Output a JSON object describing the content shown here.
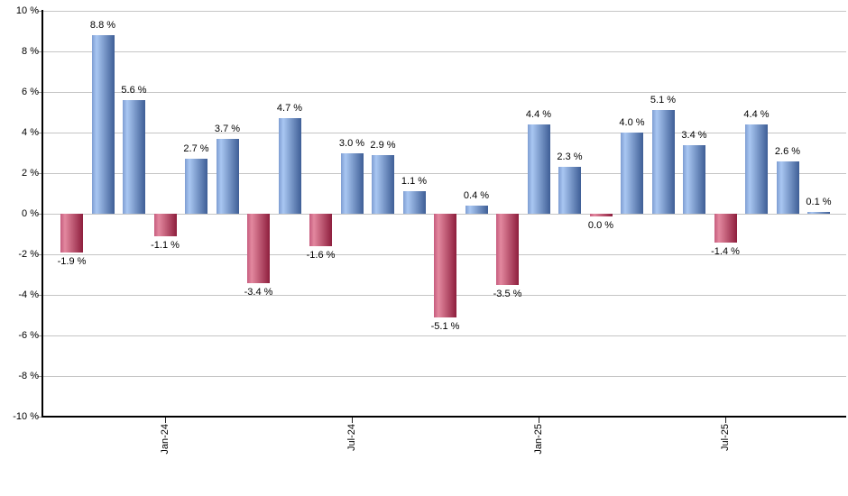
{
  "chart_data": {
    "type": "bar",
    "title": "",
    "xlabel": "",
    "ylabel": "",
    "ylim": [
      -10,
      10
    ],
    "y_step": 2,
    "grid": "horizontal",
    "legend": "none",
    "values": [
      -1.9,
      8.8,
      5.6,
      -1.1,
      2.7,
      3.7,
      -3.4,
      4.7,
      -1.6,
      3.0,
      2.9,
      1.1,
      -5.1,
      0.4,
      -3.5,
      4.4,
      2.3,
      0.0,
      4.0,
      5.1,
      3.4,
      -1.4,
      4.4,
      2.6,
      0.1
    ],
    "bar_display_labels": [
      "-1.9 %",
      "8.8 %",
      "5.6 %",
      "-1.1 %",
      "2.7 %",
      "3.7 %",
      "-3.4 %",
      "4.7 %",
      "-1.6 %",
      "3.0 %",
      "2.9 %",
      "1.1 %",
      "-5.1 %",
      "0.4 %",
      "-3.5 %",
      "4.4 %",
      "2.3 %",
      "0.0 %",
      "4.0 %",
      "5.1 %",
      "3.4 %",
      "-1.4 %",
      "4.4 %",
      "2.6 %",
      "0.1 %"
    ],
    "bar_colors": [
      "red",
      "blue",
      "blue",
      "red",
      "blue",
      "blue",
      "red",
      "blue",
      "red",
      "blue",
      "blue",
      "blue",
      "red",
      "blue",
      "red",
      "blue",
      "blue",
      "red",
      "blue",
      "blue",
      "blue",
      "red",
      "blue",
      "blue",
      "blue"
    ],
    "y_tick_labels": [
      "10 %",
      "8 %",
      "6 %",
      "4 %",
      "2 %",
      "0 %",
      "-2 %",
      "-4 %",
      "-6 %",
      "-8 %",
      "-10 %"
    ],
    "x_ticks": [
      {
        "label": "Jan-24",
        "bar_index": 3
      },
      {
        "label": "Jul-24",
        "bar_index": 9
      },
      {
        "label": "Jan-25",
        "bar_index": 15
      },
      {
        "label": "Jul-25",
        "bar_index": 21
      }
    ],
    "colors": {
      "positive_bar_gradient": [
        "#7e9dd2",
        "#a9c7f2",
        "#3e5e96"
      ],
      "negative_bar_gradient": [
        "#c65c7e",
        "#e3889f",
        "#8e1e3d"
      ],
      "gridline": "#c5c5c5",
      "axis": "#000000",
      "label_text": "#000000"
    }
  }
}
